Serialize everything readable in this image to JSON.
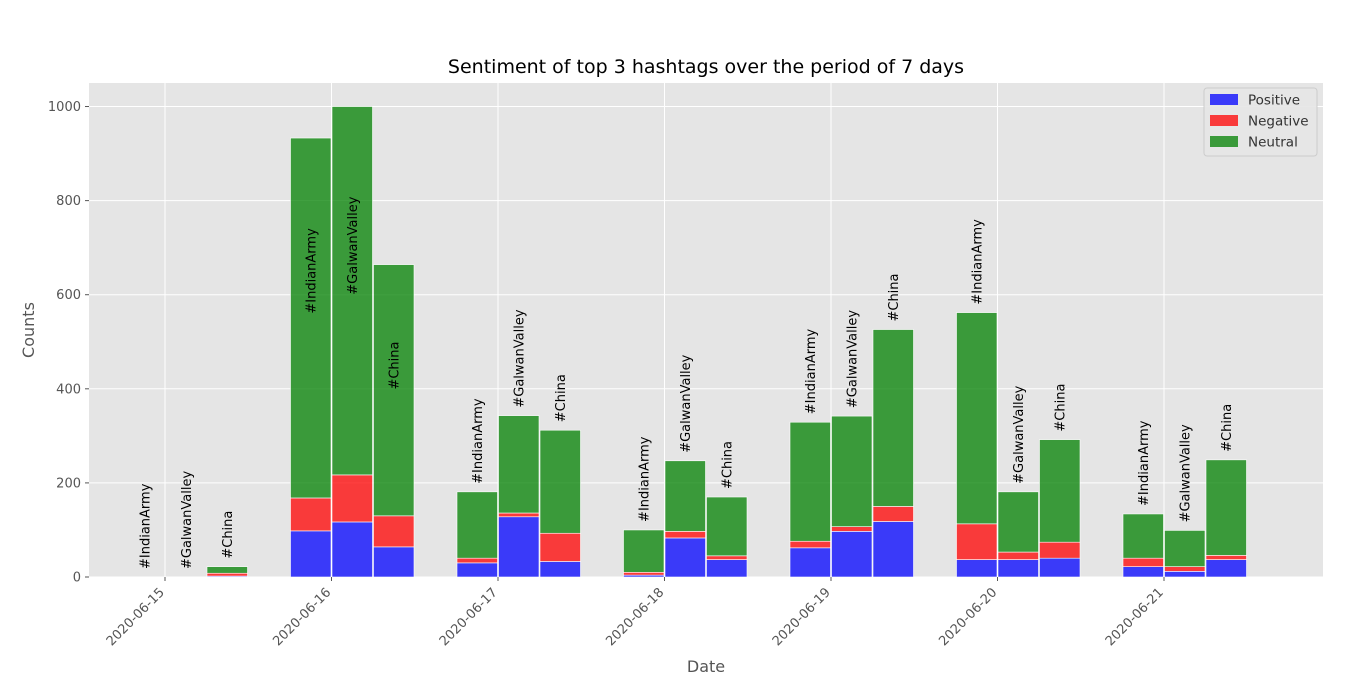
{
  "chart_data": {
    "type": "bar",
    "stacked": true,
    "title": "Sentiment of top 3 hashtags over the period of 7 days",
    "xlabel": "Date",
    "ylabel": "Counts",
    "ylim": [
      0,
      1050
    ],
    "yticks": [
      0,
      200,
      400,
      600,
      800,
      1000
    ],
    "grid": true,
    "legend_position": "top-right",
    "categories": [
      "2020-06-15",
      "2020-06-16",
      "2020-06-17",
      "2020-06-18",
      "2020-06-19",
      "2020-06-20",
      "2020-06-21"
    ],
    "groups": [
      "#IndianArmy",
      "#GalwanValley",
      "#China"
    ],
    "series": [
      {
        "name": "Positive",
        "color": "#0000ff",
        "values": [
          [
            0,
            0,
            2
          ],
          [
            98,
            117,
            64
          ],
          [
            30,
            128,
            33
          ],
          [
            4,
            83,
            37
          ],
          [
            62,
            97,
            118
          ],
          [
            37,
            37,
            40
          ],
          [
            22,
            12,
            37
          ]
        ]
      },
      {
        "name": "Negative",
        "color": "#ff0000",
        "values": [
          [
            0,
            0,
            6
          ],
          [
            70,
            100,
            66
          ],
          [
            10,
            8,
            60
          ],
          [
            6,
            14,
            8
          ],
          [
            14,
            10,
            32
          ],
          [
            76,
            16,
            34
          ],
          [
            18,
            10,
            9
          ]
        ]
      },
      {
        "name": "Neutral",
        "color": "#008000",
        "values": [
          [
            0,
            0,
            14
          ],
          [
            765,
            783,
            534
          ],
          [
            141,
            207,
            219
          ],
          [
            90,
            150,
            125
          ],
          [
            253,
            235,
            376
          ],
          [
            449,
            128,
            218
          ],
          [
            94,
            77,
            203
          ]
        ]
      }
    ]
  }
}
